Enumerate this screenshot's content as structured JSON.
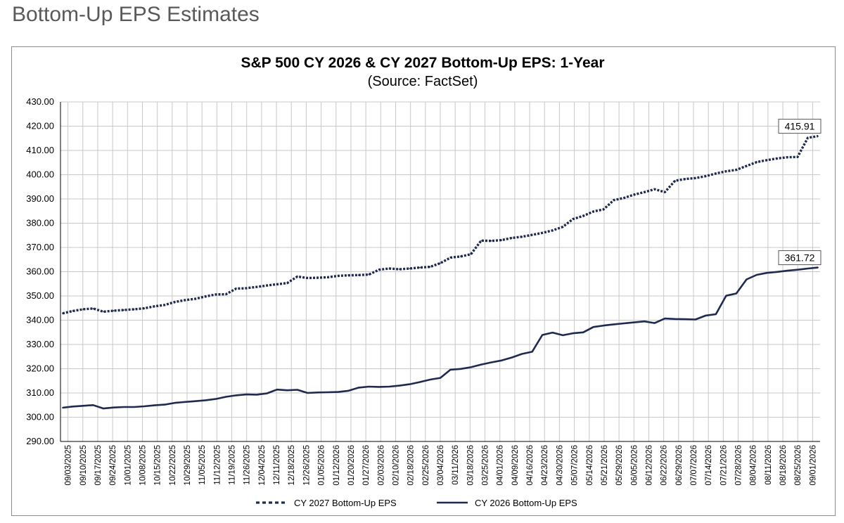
{
  "page": {
    "title": "Bottom-Up EPS Estimates"
  },
  "colors": {
    "series": "#1f2a4e",
    "grid": "#c8c8c8"
  },
  "chart_data": {
    "type": "line",
    "title": "S&P 500 CY 2026 & CY 2027 Bottom-Up EPS: 1-Year",
    "subtitle": "(Source: FactSet)",
    "xlabel": "",
    "ylabel": "",
    "ylim": [
      290,
      430
    ],
    "y_ticks": [
      "290.00",
      "300.00",
      "310.00",
      "320.00",
      "330.00",
      "340.00",
      "350.00",
      "360.00",
      "370.00",
      "380.00",
      "390.00",
      "400.00",
      "410.00",
      "420.00",
      "430.00"
    ],
    "x_tick_labels": [
      "09/03/2025",
      "09/10/2025",
      "09/17/2025",
      "09/24/2025",
      "10/01/2025",
      "10/08/2025",
      "10/15/2025",
      "10/22/2025",
      "10/29/2025",
      "11/05/2025",
      "11/12/2025",
      "11/19/2025",
      "11/26/2025",
      "12/04/2025",
      "12/11/2025",
      "12/18/2025",
      "12/26/2025",
      "01/05/2026",
      "01/12/2026",
      "01/20/2026",
      "01/27/2026",
      "02/03/2026",
      "02/10/2026",
      "02/18/2026",
      "02/25/2026",
      "03/04/2026",
      "03/11/2026",
      "03/18/2026",
      "03/25/2026",
      "04/01/2026",
      "04/09/2026",
      "04/16/2026",
      "04/23/2026",
      "04/30/2026",
      "05/07/2026",
      "05/14/2026",
      "05/21/2026",
      "05/29/2026",
      "06/05/2026",
      "06/12/2026",
      "06/22/2026",
      "06/29/2026",
      "07/07/2026",
      "07/14/2026",
      "07/21/2026",
      "07/28/2026",
      "08/04/2026",
      "08/11/2026",
      "08/18/2026",
      "08/25/2026",
      "09/01/2026"
    ],
    "grid": true,
    "legend_position": "bottom",
    "series": [
      {
        "name": "CY 2027 Bottom-Up EPS",
        "style": "dashed",
        "values": [
          342.8,
          343.8,
          344.5,
          344.8,
          343.5,
          343.9,
          344.2,
          344.5,
          344.9,
          345.7,
          346.3,
          347.5,
          348.3,
          348.8,
          349.8,
          350.6,
          350.7,
          353.0,
          353.2,
          353.7,
          354.3,
          354.8,
          355.3,
          358.0,
          357.4,
          357.5,
          357.7,
          358.3,
          358.5,
          358.6,
          358.8,
          360.8,
          361.3,
          361.0,
          361.3,
          361.7,
          362.0,
          363.5,
          365.8,
          366.3,
          367.2,
          372.8,
          372.7,
          373.0,
          373.9,
          374.4,
          375.2,
          376.0,
          377.0,
          378.5,
          381.7,
          383.0,
          384.8,
          385.7,
          389.5,
          390.4,
          391.8,
          392.8,
          394.0,
          392.8,
          397.5,
          398.2,
          398.6,
          399.4,
          400.5,
          401.4,
          402.0,
          403.6,
          405.2,
          406.0,
          406.7,
          407.2,
          407.3,
          415.2,
          415.91
        ]
      },
      {
        "name": "CY 2026 Bottom-Up EPS",
        "style": "solid",
        "values": [
          303.9,
          304.4,
          304.7,
          305.0,
          303.6,
          304.0,
          304.2,
          304.2,
          304.5,
          304.9,
          305.2,
          305.9,
          306.3,
          306.6,
          307.0,
          307.5,
          308.4,
          309.0,
          309.4,
          309.3,
          309.8,
          311.4,
          311.1,
          311.3,
          310.0,
          310.2,
          310.3,
          310.4,
          310.9,
          312.2,
          312.6,
          312.5,
          312.6,
          313.0,
          313.6,
          314.5,
          315.5,
          316.2,
          319.6,
          319.9,
          320.6,
          321.7,
          322.6,
          323.4,
          324.6,
          326.1,
          327.0,
          333.9,
          334.9,
          333.8,
          334.6,
          335.0,
          337.2,
          337.8,
          338.3,
          338.7,
          339.1,
          339.5,
          338.8,
          340.7,
          340.5,
          340.4,
          340.3,
          341.9,
          342.5,
          350.1,
          351.0,
          356.8,
          358.7,
          359.5,
          359.9,
          360.4,
          360.8,
          361.3,
          361.72
        ]
      }
    ],
    "annotations": [
      {
        "series": "CY 2027 Bottom-Up EPS",
        "text": "415.91"
      },
      {
        "series": "CY 2026 Bottom-Up EPS",
        "text": "361.72"
      }
    ]
  }
}
